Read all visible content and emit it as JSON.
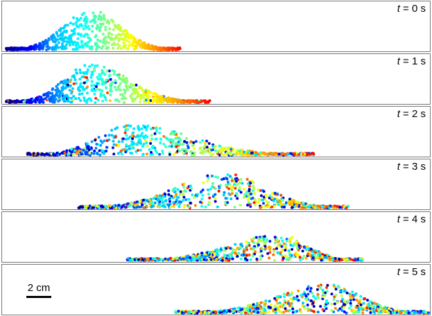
{
  "panels": [
    {
      "time_var": "t",
      "time_text": " = 0 s"
    },
    {
      "time_var": "t",
      "time_text": " = 1 s"
    },
    {
      "time_var": "t",
      "time_text": " = 2 s"
    },
    {
      "time_var": "t",
      "time_text": " = 3 s"
    },
    {
      "time_var": "t",
      "time_text": " = 4 s"
    },
    {
      "time_var": "t",
      "time_text": " = 5 s"
    }
  ],
  "scale_bar": {
    "label": "2 cm"
  },
  "colormap": [
    "#00008b",
    "#0000ff",
    "#00bfff",
    "#00ffff",
    "#7fff7f",
    "#ffff00",
    "#ff8c00",
    "#ff0000"
  ]
}
